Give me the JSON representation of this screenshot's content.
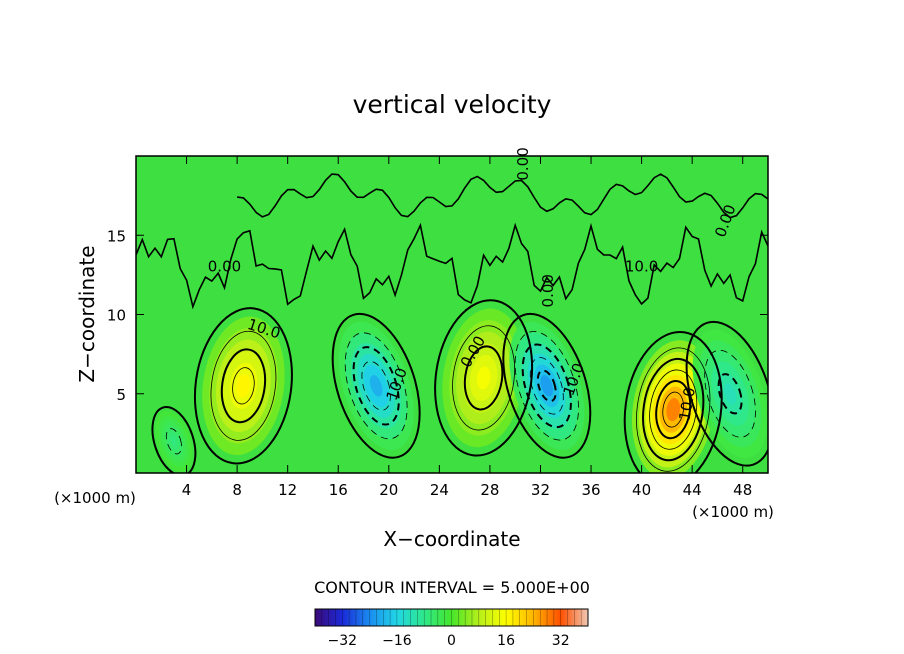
{
  "chart_data": {
    "type": "heatmap",
    "title": "vertical velocity",
    "xlabel": "X−coordinate",
    "ylabel": "Z−coordinate",
    "x_unit_left": "(×1000 m)",
    "x_unit_right": "(×1000 m)",
    "xlim": [
      0,
      50
    ],
    "ylim": [
      0,
      20
    ],
    "x_ticks": [
      4,
      8,
      12,
      16,
      20,
      24,
      28,
      32,
      36,
      40,
      44,
      48
    ],
    "y_ticks": [
      5,
      10,
      15
    ],
    "contour_interval_text": "CONTOUR INTERVAL = 5.000E+00",
    "contour_interval": 5.0,
    "contour_labels": [
      "0.00",
      "0.00",
      "0.00",
      "0.00",
      "0.00",
      "10.0",
      "10.0",
      "10.0",
      "10.0",
      "10.0"
    ],
    "colorbar": {
      "range": [
        -40,
        40
      ],
      "ticks": [
        "−32",
        "−16",
        "0",
        "16",
        "32"
      ],
      "tick_values": [
        -32,
        -16,
        0,
        16,
        32
      ],
      "colormap": [
        "#3c0a78",
        "#1a2ad8",
        "#1a8cf0",
        "#21d6e6",
        "#2ee88a",
        "#46e62a",
        "#b6ef1a",
        "#ffff00",
        "#ffb400",
        "#ff5000",
        "#f0c8b4"
      ]
    },
    "features": [
      {
        "kind": "updraft",
        "x": 8.5,
        "z": 5.5,
        "peak": 17
      },
      {
        "kind": "downdraft",
        "x": 19,
        "z": 5.5,
        "peak": -20
      },
      {
        "kind": "updraft",
        "x": 27.5,
        "z": 6,
        "peak": 15
      },
      {
        "kind": "downdraft",
        "x": 32.5,
        "z": 5.5,
        "peak": -22
      },
      {
        "kind": "updraft",
        "x": 42.5,
        "z": 4,
        "peak": 28
      },
      {
        "kind": "downdraft",
        "x": 47,
        "z": 5,
        "peak": -12
      },
      {
        "kind": "downdraft",
        "x": 3,
        "z": 2,
        "peak": -7
      }
    ]
  }
}
